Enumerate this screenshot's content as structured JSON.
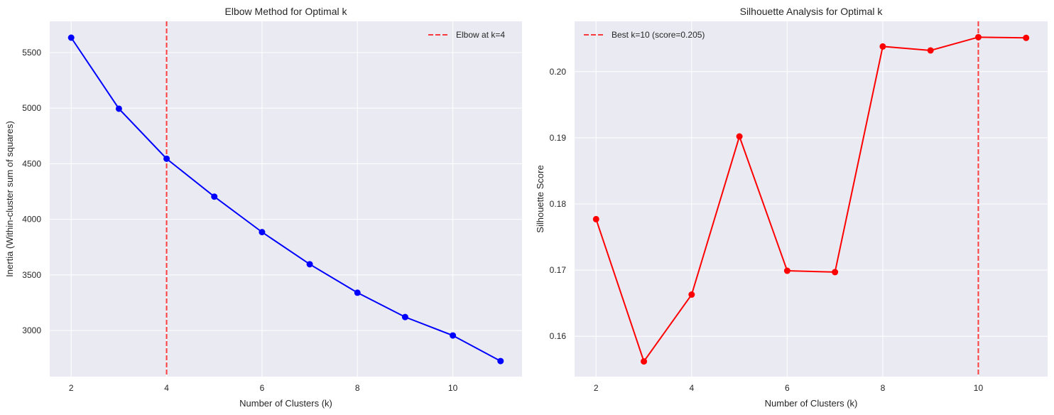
{
  "chart_data": [
    {
      "type": "line",
      "title": "Elbow Method for Optimal k",
      "xlabel": "Number of Clusters (k)",
      "ylabel": "Inertia (Within-cluster sum of squares)",
      "x": [
        2,
        3,
        4,
        5,
        6,
        7,
        8,
        9,
        10,
        11
      ],
      "values": [
        5634,
        4995,
        4545,
        4204,
        3885,
        3596,
        3340,
        3121,
        2955,
        2725
      ],
      "color": "#0000ff",
      "xlim": [
        1.55,
        11.45
      ],
      "ylim": [
        2585,
        5781
      ],
      "xticks": [
        2,
        4,
        6,
        8,
        10
      ],
      "yticks": [
        3000,
        3500,
        4000,
        4500,
        5000,
        5500
      ],
      "vline": {
        "x": 4,
        "color": "#ff0000",
        "label": "Elbow at k=4"
      },
      "legend": "top-right",
      "grid": true
    },
    {
      "type": "line",
      "title": "Silhouette Analysis for Optimal k",
      "xlabel": "Number of Clusters (k)",
      "ylabel": "Silhouette Score",
      "x": [
        2,
        3,
        4,
        5,
        6,
        7,
        8,
        9,
        10,
        11
      ],
      "values": [
        0.1777,
        0.1562,
        0.1663,
        0.1902,
        0.1699,
        0.1697,
        0.2038,
        0.2032,
        0.2052,
        0.2051
      ],
      "color": "#ff0000",
      "xlim": [
        1.55,
        11.45
      ],
      "ylim": [
        0.1539,
        0.2076
      ],
      "xticks": [
        2,
        4,
        6,
        8,
        10
      ],
      "yticks": [
        0.16,
        0.17,
        0.18,
        0.19,
        0.2
      ],
      "ytick_labels": [
        "0.16",
        "0.17",
        "0.18",
        "0.19",
        "0.20"
      ],
      "vline": {
        "x": 10,
        "color": "#ff0000",
        "label": "Best k=10 (score=0.205)"
      },
      "legend": "top-left",
      "grid": true
    }
  ]
}
